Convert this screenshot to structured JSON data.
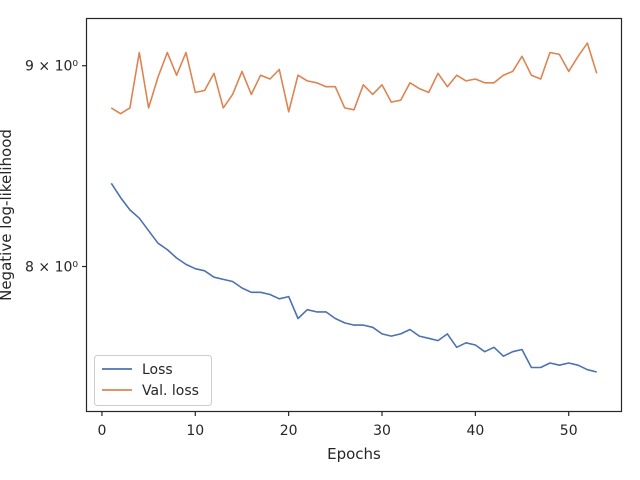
{
  "chart_data": {
    "type": "line",
    "xlabel": "Epochs",
    "ylabel": "Negative log-likelihood",
    "xlim": [
      -1.6,
      55.6
    ],
    "ylim": [
      7.35,
      9.25
    ],
    "yscale": "log",
    "xticks": [
      0,
      10,
      20,
      30,
      40,
      50
    ],
    "xtick_labels": [
      "0",
      "10",
      "20",
      "30",
      "40",
      "50"
    ],
    "yticks": [
      8,
      9
    ],
    "ytick_labels": [
      "8 × 10⁰",
      "9 × 10⁰"
    ],
    "grid": false,
    "legend": "lower-left",
    "series": [
      {
        "name": "Loss",
        "color": "#4c72b0",
        "x": [
          1,
          2,
          3,
          4,
          5,
          6,
          7,
          8,
          9,
          10,
          11,
          12,
          13,
          14,
          15,
          16,
          17,
          18,
          19,
          20,
          21,
          22,
          23,
          24,
          25,
          26,
          27,
          28,
          29,
          30,
          31,
          32,
          33,
          34,
          35,
          36,
          37,
          38,
          39,
          40,
          41,
          42,
          43,
          44,
          45,
          46,
          47,
          48,
          49,
          50,
          51,
          52,
          53
        ],
        "values": [
          8.4,
          8.33,
          8.27,
          8.23,
          8.17,
          8.11,
          8.08,
          8.04,
          8.01,
          7.99,
          7.98,
          7.95,
          7.94,
          7.93,
          7.9,
          7.88,
          7.88,
          7.87,
          7.85,
          7.86,
          7.76,
          7.8,
          7.79,
          7.79,
          7.76,
          7.74,
          7.73,
          7.73,
          7.72,
          7.69,
          7.68,
          7.69,
          7.71,
          7.68,
          7.67,
          7.66,
          7.69,
          7.63,
          7.65,
          7.64,
          7.61,
          7.63,
          7.59,
          7.61,
          7.62,
          7.54,
          7.54,
          7.56,
          7.55,
          7.56,
          7.55,
          7.53,
          7.52
        ]
      },
      {
        "name": "Val. loss",
        "color": "#dd8452",
        "x": [
          1,
          2,
          3,
          4,
          5,
          6,
          7,
          8,
          9,
          10,
          11,
          12,
          13,
          14,
          15,
          16,
          17,
          18,
          19,
          20,
          21,
          22,
          23,
          24,
          25,
          26,
          27,
          28,
          29,
          30,
          31,
          32,
          33,
          34,
          35,
          36,
          37,
          38,
          39,
          40,
          41,
          42,
          43,
          44,
          45,
          46,
          47,
          48,
          49,
          50,
          51,
          52,
          53
        ],
        "values": [
          8.78,
          8.75,
          8.78,
          9.07,
          8.78,
          8.94,
          9.07,
          8.95,
          9.07,
          8.86,
          8.87,
          8.96,
          8.78,
          8.85,
          8.97,
          8.85,
          8.95,
          8.93,
          8.98,
          8.76,
          8.95,
          8.92,
          8.91,
          8.89,
          8.89,
          8.78,
          8.77,
          8.9,
          8.85,
          8.9,
          8.81,
          8.82,
          8.91,
          8.88,
          8.86,
          8.96,
          8.89,
          8.95,
          8.92,
          8.93,
          8.91,
          8.91,
          8.95,
          8.97,
          9.05,
          8.95,
          8.93,
          9.07,
          9.06,
          8.97,
          9.05,
          9.12,
          8.96
        ]
      }
    ]
  }
}
